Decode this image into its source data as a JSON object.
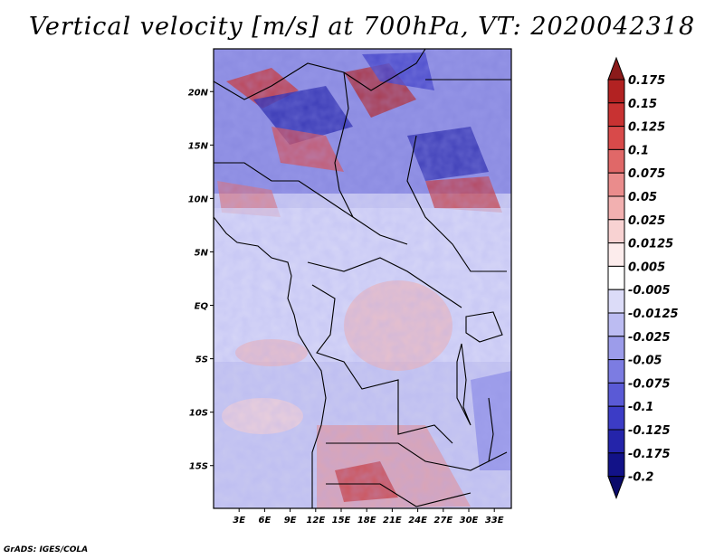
{
  "title": "Vertical velocity [m/s] at 700hPa, VT: 2020042318",
  "credit": "GrADS: IGES/COLA",
  "map": {
    "lat_ticks": [
      "20N",
      "15N",
      "10N",
      "5N",
      "EQ",
      "5S",
      "10S",
      "15S"
    ],
    "lon_ticks": [
      "3E",
      "6E",
      "9E",
      "12E",
      "15E",
      "18E",
      "21E",
      "24E",
      "27E",
      "30E",
      "33E"
    ],
    "lon_range": [
      0,
      35
    ],
    "lat_range": [
      -19,
      24
    ]
  },
  "colorbar": {
    "levels": [
      "0.175",
      "0.15",
      "0.125",
      "0.1",
      "0.075",
      "0.05",
      "0.025",
      "0.0125",
      "0.005",
      "-0.005",
      "-0.0125",
      "-0.025",
      "-0.05",
      "-0.075",
      "-0.1",
      "-0.125",
      "-0.175",
      "-0.2"
    ],
    "colors": [
      "#8b1a1a",
      "#b22222",
      "#c83232",
      "#d84a4a",
      "#e06868",
      "#ea8c8c",
      "#f2b0b0",
      "#f8d2d2",
      "#fcecec",
      "#ffffff",
      "#dcdcf8",
      "#bcbcf2",
      "#9c9cea",
      "#7c7ce2",
      "#5a5ad6",
      "#3c3cc6",
      "#2424aa",
      "#121288",
      "#0a0a6a"
    ]
  }
}
